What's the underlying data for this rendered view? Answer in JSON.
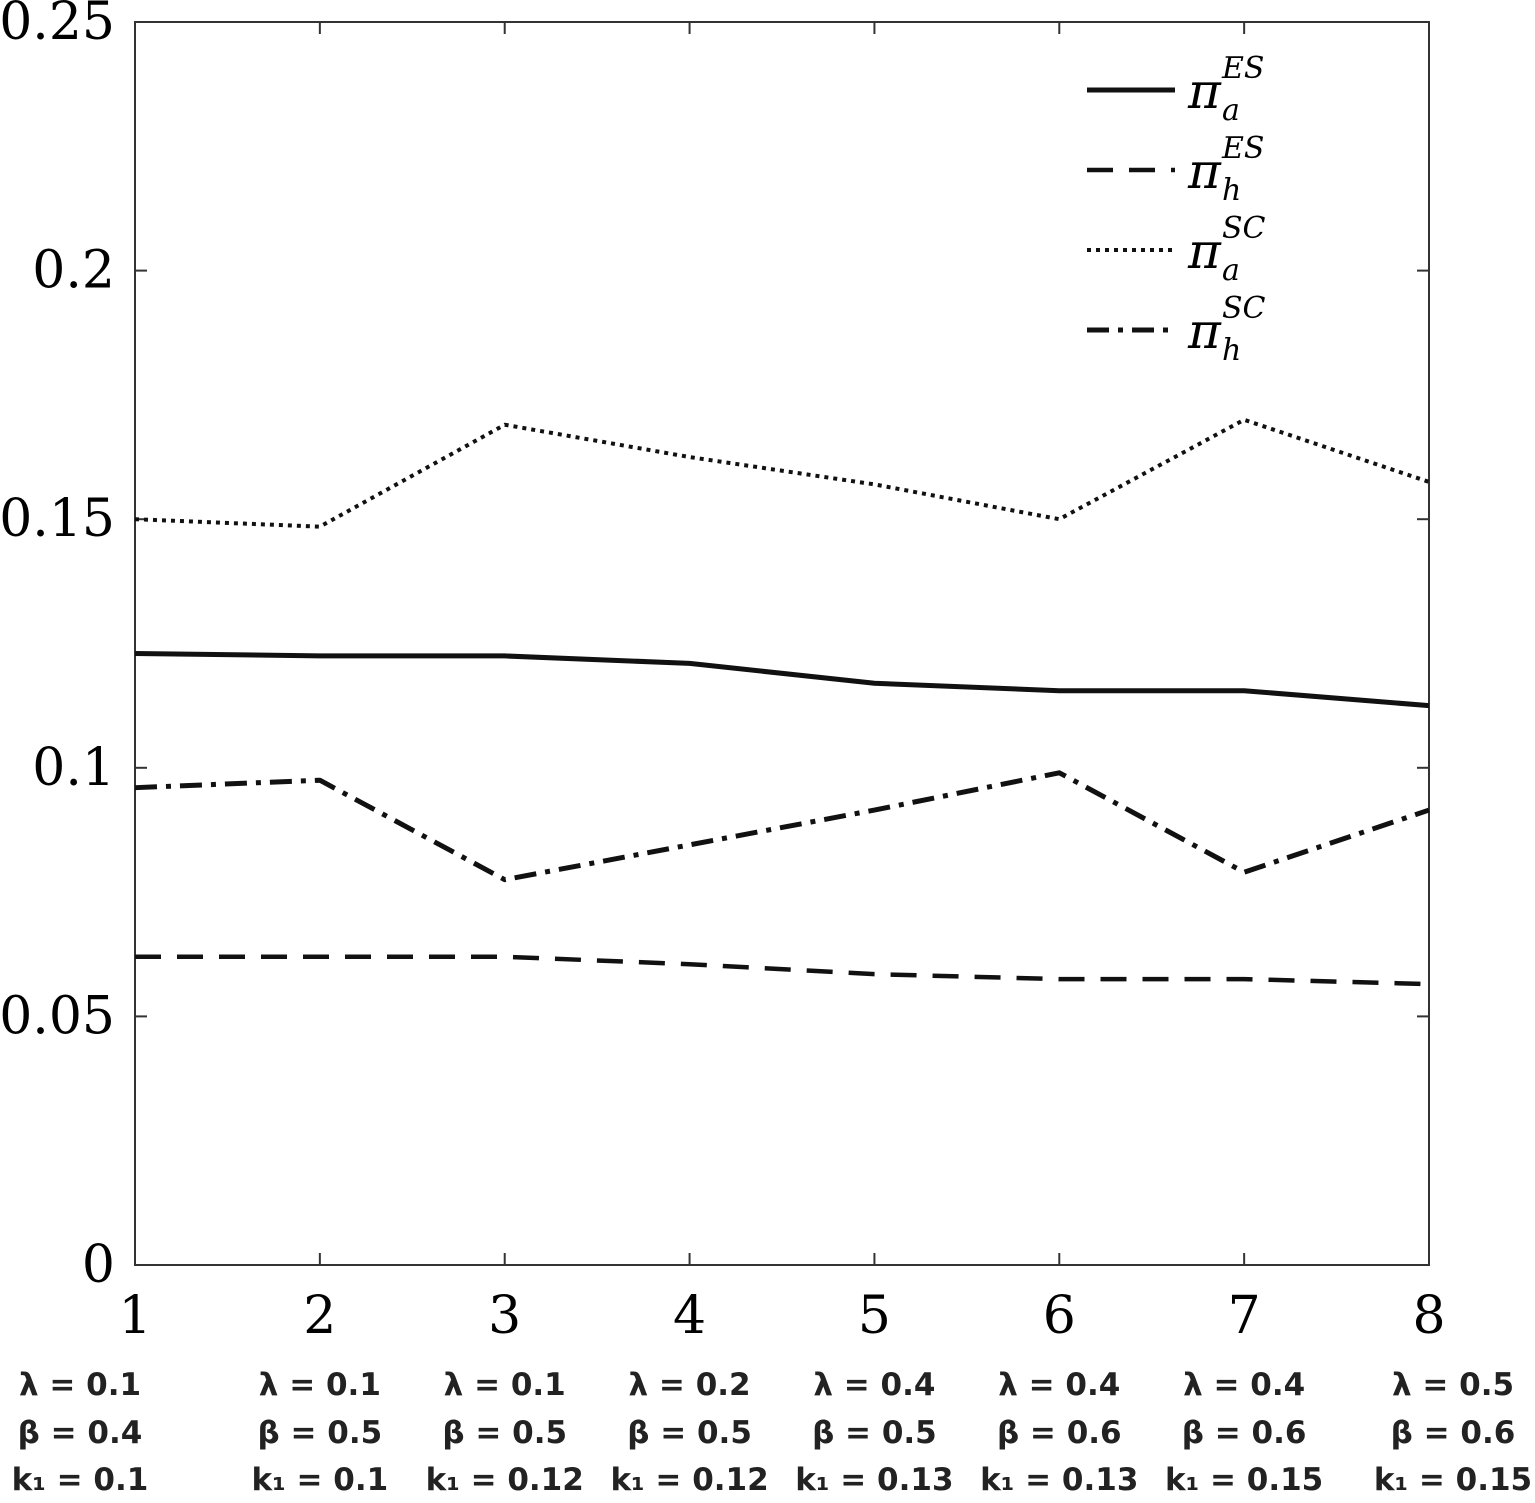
{
  "chart_data": {
    "type": "line",
    "title": "",
    "xlabel": "",
    "ylabel": "",
    "x": [
      1,
      2,
      3,
      4,
      5,
      6,
      7,
      8
    ],
    "xticks": [
      "1",
      "2",
      "3",
      "4",
      "5",
      "6",
      "7",
      "8"
    ],
    "yticks": [
      "0",
      "0.05",
      "0.1",
      "0.15",
      "0.2",
      "0.25"
    ],
    "xlim": [
      1,
      8
    ],
    "ylim": [
      0,
      0.25
    ],
    "grid": false,
    "legend_position": "top-right",
    "series": [
      {
        "symbol": "π",
        "sub": "a",
        "sup": "ES",
        "style": "solid",
        "values": [
          0.123,
          0.1225,
          0.1225,
          0.121,
          0.117,
          0.1155,
          0.1155,
          0.1125
        ]
      },
      {
        "symbol": "π",
        "sub": "h",
        "sup": "ES",
        "style": "dashed",
        "values": [
          0.062,
          0.062,
          0.062,
          0.0605,
          0.0585,
          0.0575,
          0.0575,
          0.0565
        ]
      },
      {
        "symbol": "π",
        "sub": "a",
        "sup": "SC",
        "style": "dotted",
        "values": [
          0.15,
          0.1485,
          0.169,
          0.1625,
          0.157,
          0.15,
          0.17,
          0.1575
        ]
      },
      {
        "symbol": "π",
        "sub": "h",
        "sup": "SC",
        "style": "dashdot",
        "values": [
          0.096,
          0.0975,
          0.0775,
          0.0845,
          0.0915,
          0.099,
          0.079,
          0.0915
        ]
      }
    ],
    "parameter_labels": [
      [
        "λ = 0.1",
        "β = 0.4",
        "k₁ = 0.1"
      ],
      [
        "λ = 0.1",
        "β = 0.5",
        "k₁ = 0.1"
      ],
      [
        "λ = 0.1",
        "β = 0.5",
        "k₁ = 0.12"
      ],
      [
        "λ = 0.2",
        "β = 0.5",
        "k₁ = 0.12"
      ],
      [
        "λ = 0.4",
        "β = 0.5",
        "k₁ = 0.13"
      ],
      [
        "λ = 0.4",
        "β = 0.6",
        "k₁ = 0.13"
      ],
      [
        "λ = 0.4",
        "β = 0.6",
        "k₁ = 0.15"
      ],
      [
        "λ = 0.5",
        "β = 0.6",
        "k₁ = 0.15"
      ]
    ]
  }
}
